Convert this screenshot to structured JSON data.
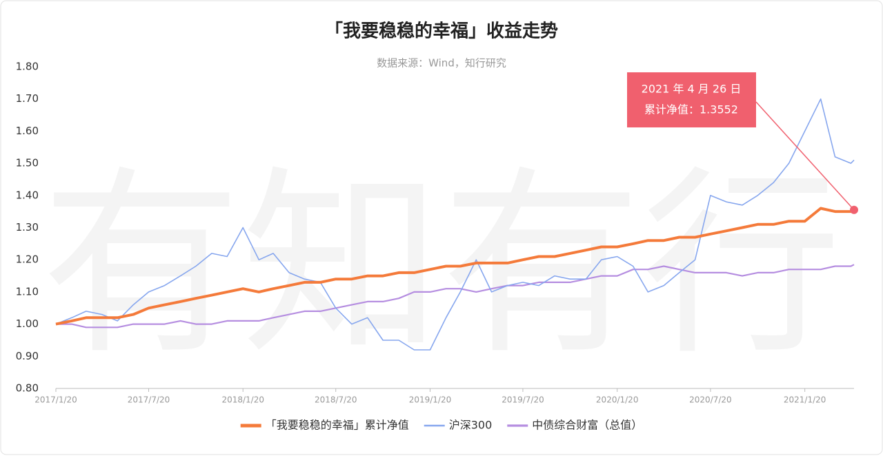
{
  "chart_data": {
    "type": "line",
    "title": "「我要稳稳的幸福」收益走势",
    "subtitle": "数据来源：Wind，知行研究",
    "watermark": "有知有行",
    "x": [
      "2017/1/20",
      "2017/2/20",
      "2017/3/20",
      "2017/4/20",
      "2017/5/20",
      "2017/6/20",
      "2017/7/20",
      "2017/8/20",
      "2017/9/20",
      "2017/10/20",
      "2017/11/20",
      "2017/12/20",
      "2018/1/20",
      "2018/2/20",
      "2018/3/20",
      "2018/4/20",
      "2018/5/20",
      "2018/6/20",
      "2018/7/20",
      "2018/8/20",
      "2018/9/20",
      "2018/10/20",
      "2018/11/20",
      "2018/12/20",
      "2019/1/20",
      "2019/2/20",
      "2019/3/20",
      "2019/4/20",
      "2019/5/20",
      "2019/6/20",
      "2019/7/20",
      "2019/8/20",
      "2019/9/20",
      "2019/10/20",
      "2019/11/20",
      "2019/12/20",
      "2020/1/20",
      "2020/2/20",
      "2020/3/20",
      "2020/4/20",
      "2020/5/20",
      "2020/6/20",
      "2020/7/20",
      "2020/8/20",
      "2020/9/20",
      "2020/10/20",
      "2020/11/20",
      "2020/12/20",
      "2021/1/20",
      "2021/2/20",
      "2021/3/20",
      "2021/4/20",
      "2021/4/26"
    ],
    "series": [
      {
        "name": "「我要稳稳的幸福」累计净值",
        "color": "#f47a3a",
        "width": 4,
        "values": [
          1.0,
          1.01,
          1.02,
          1.02,
          1.02,
          1.03,
          1.05,
          1.06,
          1.07,
          1.08,
          1.09,
          1.1,
          1.11,
          1.1,
          1.11,
          1.12,
          1.13,
          1.13,
          1.14,
          1.14,
          1.15,
          1.15,
          1.16,
          1.16,
          1.17,
          1.18,
          1.18,
          1.19,
          1.19,
          1.19,
          1.2,
          1.21,
          1.21,
          1.22,
          1.23,
          1.24,
          1.24,
          1.25,
          1.26,
          1.26,
          1.27,
          1.27,
          1.28,
          1.29,
          1.3,
          1.31,
          1.31,
          1.32,
          1.32,
          1.36,
          1.35,
          1.35,
          1.3552
        ]
      },
      {
        "name": "沪深300",
        "color": "#86a6ee",
        "width": 1.6,
        "values": [
          1.0,
          1.02,
          1.04,
          1.03,
          1.01,
          1.06,
          1.1,
          1.12,
          1.15,
          1.18,
          1.22,
          1.21,
          1.3,
          1.2,
          1.22,
          1.16,
          1.14,
          1.13,
          1.05,
          1.0,
          1.02,
          0.95,
          0.95,
          0.92,
          0.92,
          1.02,
          1.1,
          1.2,
          1.1,
          1.12,
          1.13,
          1.12,
          1.15,
          1.14,
          1.14,
          1.2,
          1.21,
          1.18,
          1.1,
          1.12,
          1.16,
          1.2,
          1.4,
          1.38,
          1.37,
          1.4,
          1.44,
          1.5,
          1.6,
          1.7,
          1.52,
          1.5,
          1.51
        ]
      },
      {
        "name": "中债综合财富（总值）",
        "color": "#b58de0",
        "width": 2.2,
        "values": [
          1.0,
          1.0,
          0.99,
          0.99,
          0.99,
          1.0,
          1.0,
          1.0,
          1.01,
          1.0,
          1.0,
          1.01,
          1.01,
          1.01,
          1.02,
          1.03,
          1.04,
          1.04,
          1.05,
          1.06,
          1.07,
          1.07,
          1.08,
          1.1,
          1.1,
          1.11,
          1.11,
          1.1,
          1.11,
          1.12,
          1.12,
          1.13,
          1.13,
          1.13,
          1.14,
          1.15,
          1.15,
          1.17,
          1.17,
          1.18,
          1.17,
          1.16,
          1.16,
          1.16,
          1.15,
          1.16,
          1.16,
          1.17,
          1.17,
          1.17,
          1.18,
          1.18,
          1.185
        ]
      }
    ],
    "xlim": [
      "2017/1/20",
      "2021/4/26"
    ],
    "xticks": [
      "2017/1/20",
      "2017/7/20",
      "2018/1/20",
      "2018/7/20",
      "2019/1/20",
      "2019/7/20",
      "2020/1/20",
      "2020/7/20",
      "2021/1/20"
    ],
    "ylim": [
      0.8,
      1.8
    ],
    "yticks": [
      {
        "value": 0.8,
        "label": "0.80"
      },
      {
        "value": 0.9,
        "label": "0.90"
      },
      {
        "value": 1.0,
        "label": "1.00"
      },
      {
        "value": 1.1,
        "label": "1.10"
      },
      {
        "value": 1.2,
        "label": "1.20"
      },
      {
        "value": 1.3,
        "label": "1.30"
      },
      {
        "value": 1.4,
        "label": "1.40"
      },
      {
        "value": 1.5,
        "label": "1.50"
      },
      {
        "value": 1.6,
        "label": "1.60"
      },
      {
        "value": 1.7,
        "label": "1.70"
      },
      {
        "value": 1.8,
        "label": "1.80"
      }
    ],
    "grid": false,
    "legend": "bottom",
    "annotation": {
      "lines": [
        "2021 年 4 月 26 日",
        "累计净值：1.3552"
      ],
      "color": "#f0606e"
    }
  }
}
